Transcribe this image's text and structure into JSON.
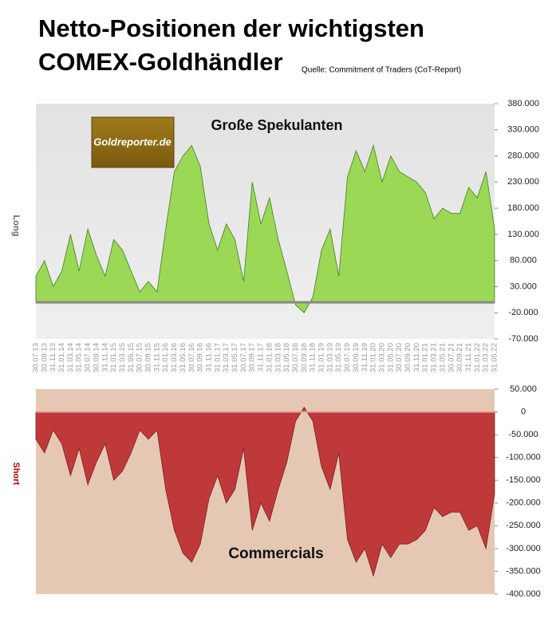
{
  "chart_data": [
    {
      "type": "area",
      "title": "Netto-Positionen der wichtigsten",
      "subtitle": "COMEX-Goldhändler",
      "source": "Quelle: Commitment of Traders (CoT-Report)",
      "logo": "Goldreporter.de",
      "annotation": "Große Spekulanten",
      "ylabel": "Long",
      "color": "#9bd855",
      "categories": [
        "30.07.13",
        "30.09.13",
        "31.11.13",
        "31.01.14",
        "31.03.14",
        "31.05.14",
        "30.07.14",
        "30.09.14",
        "31.11.14",
        "31.01.15",
        "31.03.15",
        "31.05.15",
        "30.07.15",
        "30.09.15",
        "31.11.15",
        "31.01.16",
        "31.03.16",
        "31.05.16",
        "30.07.16",
        "30.09.16",
        "31.11.16",
        "31.01.17",
        "31.03.17",
        "31.05.17",
        "30.07.17",
        "30.09.17",
        "31.11.17",
        "31.01.18",
        "31.03.18",
        "31.05.18",
        "30.07.18",
        "30.09.18",
        "31.11.18",
        "31.01.19",
        "31.03.19",
        "31.05.19",
        "30.07.19",
        "30.09.19",
        "31.11.19",
        "31.01.20",
        "31.03.20",
        "31.05.20",
        "30.07.20",
        "30.09.20",
        "31.11.20",
        "31.01.21",
        "31.03.21",
        "31.05.21",
        "30.07.21",
        "30.09.21",
        "31.11.21",
        "31.01.22",
        "31.03.22",
        "31.05.22"
      ],
      "values": [
        50000,
        80000,
        30000,
        60000,
        130000,
        60000,
        140000,
        90000,
        50000,
        120000,
        100000,
        60000,
        20000,
        40000,
        20000,
        140000,
        250000,
        280000,
        300000,
        260000,
        150000,
        100000,
        150000,
        120000,
        40000,
        230000,
        150000,
        200000,
        120000,
        60000,
        -5000,
        -20000,
        10000,
        100000,
        140000,
        50000,
        240000,
        290000,
        250000,
        300000,
        230000,
        280000,
        250000,
        240000,
        230000,
        210000,
        160000,
        180000,
        170000,
        170000,
        220000,
        200000,
        250000,
        140000
      ],
      "ylim": [
        -70000,
        380000
      ],
      "yticks": [
        {
          "value": 380000,
          "label": "380.000"
        },
        {
          "value": 330000,
          "label": "330.000"
        },
        {
          "value": 280000,
          "label": "280.000"
        },
        {
          "value": 230000,
          "label": "230.000"
        },
        {
          "value": 180000,
          "label": "180.000"
        },
        {
          "value": 130000,
          "label": "130.000"
        },
        {
          "value": 80000,
          "label": "80.000"
        },
        {
          "value": 30000,
          "label": "30.000"
        },
        {
          "value": -20000,
          "label": "-20.000"
        },
        {
          "value": -70000,
          "label": "-70.000"
        }
      ]
    },
    {
      "type": "area",
      "annotation": "Commercials",
      "ylabel": "Short",
      "color": "#c0393a",
      "values": [
        -60000,
        -90000,
        -40000,
        -70000,
        -140000,
        -80000,
        -160000,
        -110000,
        -70000,
        -150000,
        -130000,
        -90000,
        -40000,
        -60000,
        -40000,
        -170000,
        -260000,
        -310000,
        -330000,
        -290000,
        -190000,
        -140000,
        -200000,
        -170000,
        -80000,
        -260000,
        -200000,
        -240000,
        -170000,
        -110000,
        -20000,
        10000,
        -20000,
        -120000,
        -170000,
        -90000,
        -280000,
        -330000,
        -300000,
        -360000,
        -290000,
        -320000,
        -290000,
        -290000,
        -280000,
        -260000,
        -210000,
        -230000,
        -220000,
        -220000,
        -260000,
        -250000,
        -300000,
        -180000
      ],
      "ylim": [
        -400000,
        50000
      ],
      "yticks": [
        {
          "value": 50000,
          "label": "50.000"
        },
        0,
        {
          "value": -50000,
          "label": "-50.000"
        },
        {
          "value": -100000,
          "label": "-100.000"
        },
        {
          "value": -150000,
          "label": "-150.000"
        },
        {
          "value": -200000,
          "label": "-200.000"
        },
        {
          "value": -250000,
          "label": "-250.000"
        },
        {
          "value": -300000,
          "label": "-300.000"
        },
        {
          "value": -350000,
          "label": "-350.000"
        },
        {
          "value": -400000,
          "label": "-400.000"
        }
      ]
    }
  ]
}
